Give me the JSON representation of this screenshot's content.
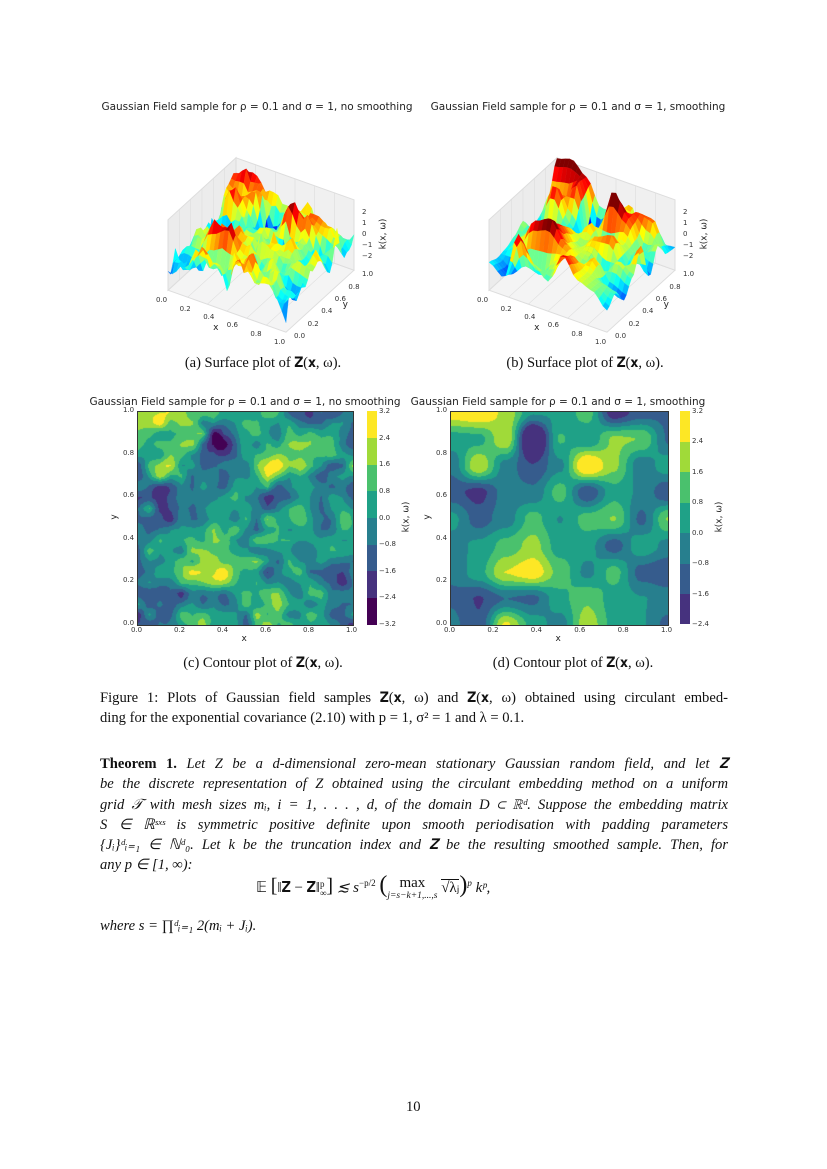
{
  "figure": {
    "subplots": [
      {
        "label": "(a) Surface plot of ",
        "symbol": "𝐙(𝐱, ω).",
        "title": "Gaussian Field sample for ρ = 0.1 and σ = 1, no smoothing"
      },
      {
        "label": "(b) Surface plot of ",
        "symbol": "𝐙̃(𝐱, ω).",
        "title": "Gaussian Field sample for ρ = 0.1 and σ = 1, smoothing"
      },
      {
        "label": "(c) Contour plot of ",
        "symbol": "𝐙(𝐱, ω).",
        "title": "Gaussian Field sample for ρ = 0.1 and σ = 1, no smoothing"
      },
      {
        "label": "(d) Contour plot of ",
        "symbol": "𝐙̃(𝐱, ω).",
        "title": "Gaussian Field sample for ρ = 0.1 and σ = 1, smoothing"
      }
    ],
    "caption": [
      "Figure 1: Plots of Gaussian field samples 𝐙(𝐱, ω) and 𝐙̃(𝐱, ω) obtained using circulant embed-",
      "ding for the exponential covariance (2.10) with p = 1, σ² = 1 and λ = 0.1."
    ]
  },
  "chart_data": [
    {
      "type": "surface",
      "title": "Gaussian Field sample for ρ = 0.1 and σ = 1, no smoothing",
      "xlabel": "x",
      "ylabel": "y",
      "zlabel": "k(x, ω)",
      "xticks": [
        "0.0",
        "0.2",
        "0.4",
        "0.6",
        "0.8",
        "1.0"
      ],
      "yticks": [
        "0.0",
        "0.2",
        "0.4",
        "0.6",
        "0.8",
        "1.0"
      ],
      "zticks": [
        "2",
        "1",
        "0",
        "−1",
        "−2"
      ],
      "xlim": [
        0,
        1
      ],
      "ylim": [
        0,
        1
      ],
      "colormap": "jet"
    },
    {
      "type": "surface",
      "title": "Gaussian Field sample for ρ = 0.1 and σ = 1, smoothing",
      "xlabel": "x",
      "ylabel": "y",
      "zlabel": "k(x, ω)",
      "xticks": [
        "0.0",
        "0.2",
        "0.4",
        "0.6",
        "0.8",
        "1.0"
      ],
      "yticks": [
        "0.0",
        "0.2",
        "0.4",
        "0.6",
        "0.8",
        "1.0"
      ],
      "zticks": [
        "2",
        "1",
        "0",
        "−1",
        "−2"
      ],
      "xlim": [
        0,
        1
      ],
      "ylim": [
        0,
        1
      ],
      "colormap": "jet"
    },
    {
      "type": "heatmap",
      "title": "Gaussian Field sample for ρ = 0.1 and σ = 1, no smoothing",
      "xlabel": "x",
      "ylabel": "y",
      "colorbar_label": "k(x, ω)",
      "xticks": [
        "0.0",
        "0.2",
        "0.4",
        "0.6",
        "0.8",
        "1.0"
      ],
      "yticks": [
        "0.0",
        "0.2",
        "0.4",
        "0.6",
        "0.8",
        "1.0"
      ],
      "colorbar_ticks": [
        "3.2",
        "2.4",
        "1.6",
        "0.8",
        "0.0",
        "−0.8",
        "−1.6",
        "−2.4",
        "−3.2"
      ],
      "levels": [
        -3.2,
        -2.4,
        -1.6,
        -0.8,
        0.0,
        0.8,
        1.6,
        2.4,
        3.2
      ],
      "colormap": "viridis"
    },
    {
      "type": "heatmap",
      "title": "Gaussian Field sample for ρ = 0.1 and σ = 1, smoothing",
      "xlabel": "x",
      "ylabel": "y",
      "colorbar_label": "k(x, ω)",
      "xticks": [
        "0.0",
        "0.2",
        "0.4",
        "0.6",
        "0.8",
        "1.0"
      ],
      "yticks": [
        "0.0",
        "0.2",
        "0.4",
        "0.6",
        "0.8",
        "1.0"
      ],
      "colorbar_ticks": [
        "3.2",
        "2.4",
        "1.6",
        "0.8",
        "0.0",
        "−0.8",
        "−1.6",
        "−2.4"
      ],
      "levels": [
        -2.4,
        -1.6,
        -0.8,
        0.0,
        0.8,
        1.6,
        2.4,
        3.2
      ],
      "colormap": "viridis"
    }
  ],
  "theorem": {
    "head": "Theorem 1.",
    "lines": [
      " Let Z be a d-dimensional zero-mean stationary Gaussian random field, and let 𝐙",
      "be the discrete representation of Z obtained using the circulant embedding method on a uniform",
      "grid 𝒯 with mesh sizes mᵢ, i = 1, . . . , d, of the domain D ⊂ ℝᵈ. Suppose the embedding matrix",
      "S ∈ ℝˢˣˢ is symmetric positive definite upon smooth periodisation with padding parameters",
      "{Jᵢ}ᵈᵢ₌₁ ∈ ℕᵈ₀. Let k be the truncation index and 𝐙̃ be the resulting smoothed sample. Then, for",
      "any p ∈ [1, ∞):"
    ],
    "equation": "𝔼 [ ‖𝐙 − 𝐙̃‖ᵖ∞ ] ≲ s^(−p/2) ( max_{j=s−k+1,...,s} √λⱼ )ᵖ kᵖ,",
    "eq_parts": {
      "lhs": "𝔼",
      "norm": "‖𝐙 − 𝐙̃‖",
      "sup": "p",
      "sub": "∞",
      "rel": "≲ s",
      "exp": "−p/2",
      "max": "max",
      "range": "j=s−k+1,...,s",
      "sqrt": "√λⱼ",
      "pow": "p",
      "tail": "kᵖ,"
    },
    "where": "where s = ∏ᵈᵢ₌₁ 2(mᵢ + Jᵢ)."
  },
  "page_number": "10"
}
